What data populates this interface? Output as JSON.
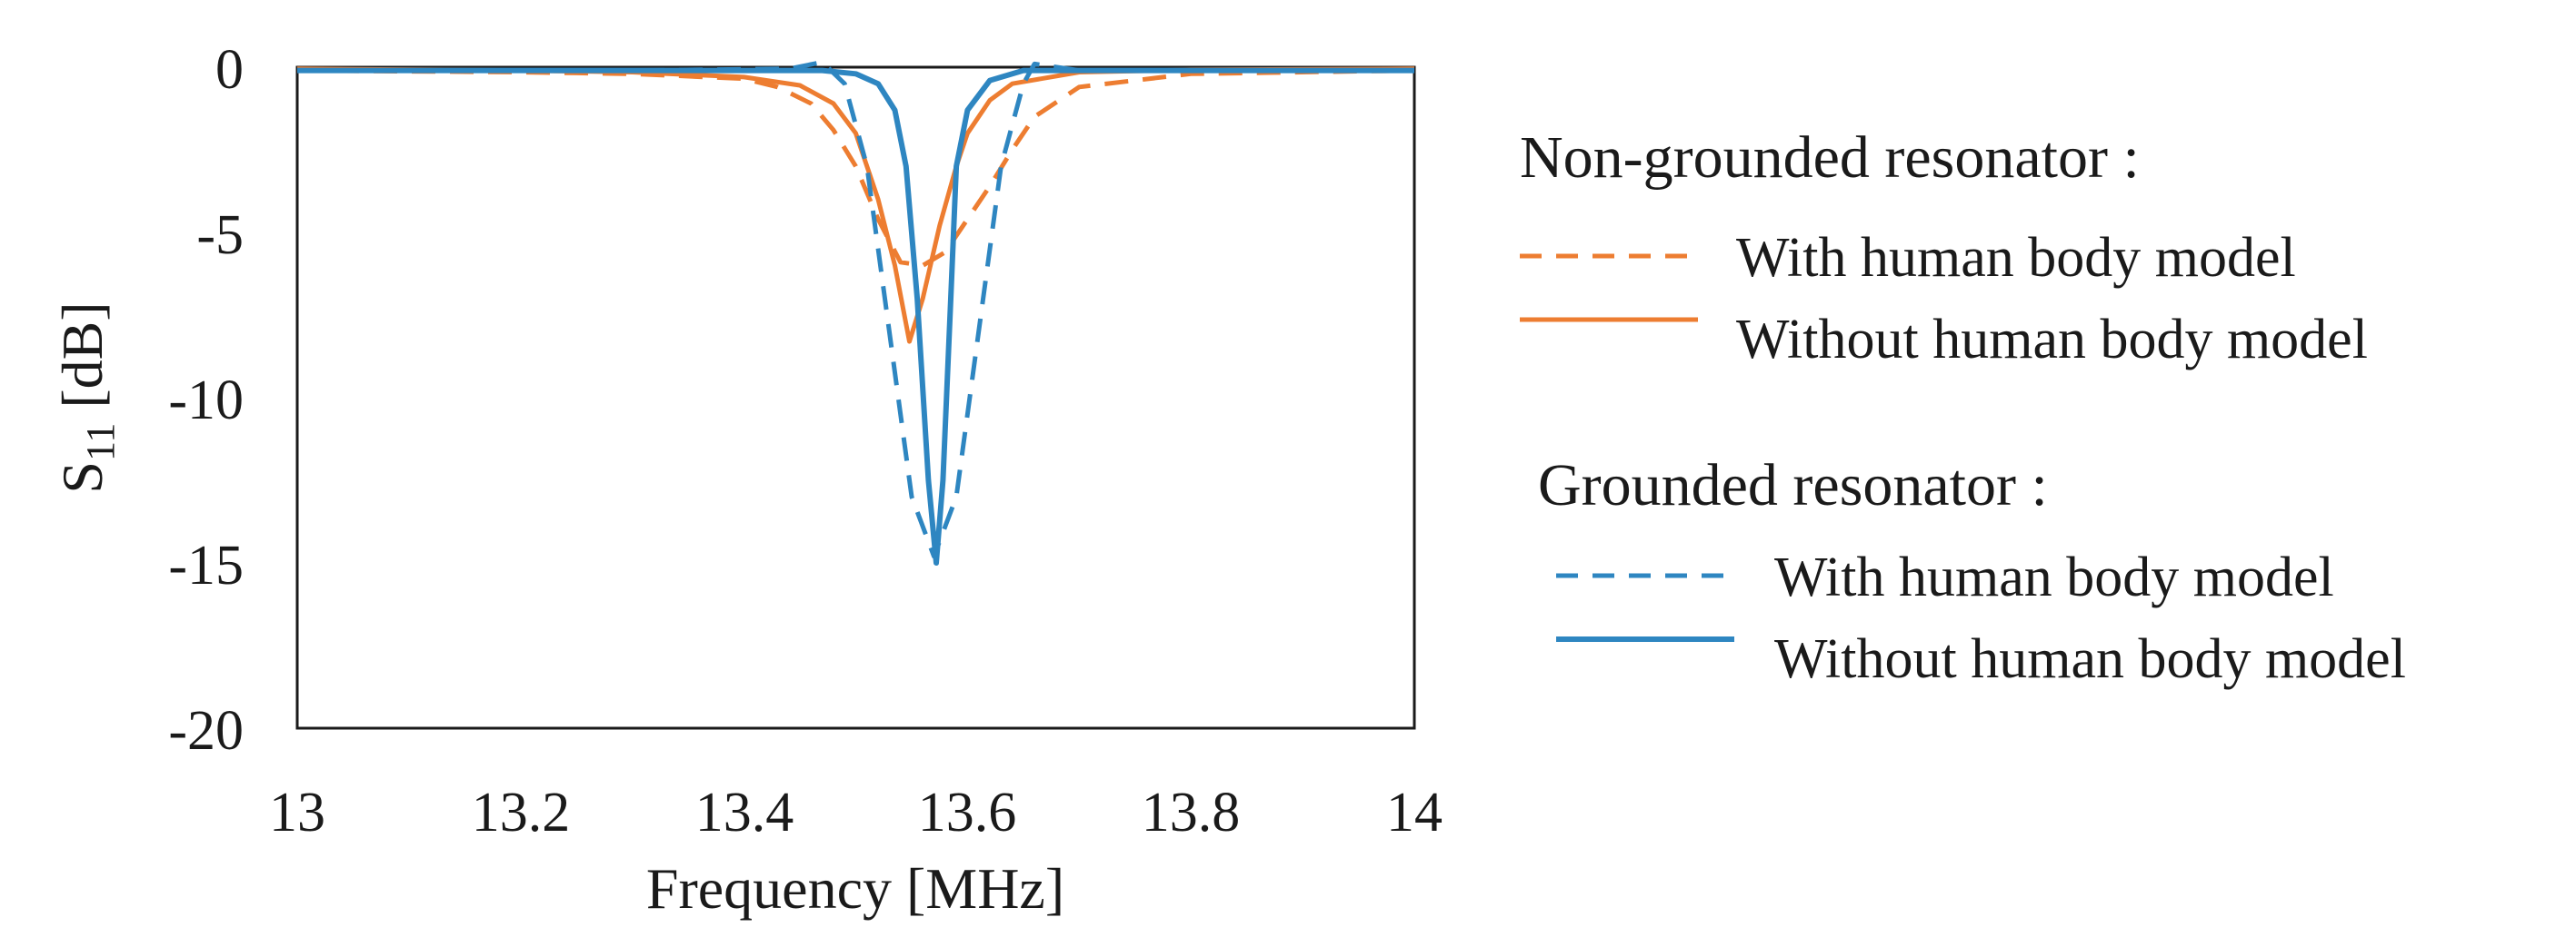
{
  "chart_data": {
    "type": "line",
    "title": "",
    "xlabel": "Frequency [MHz]",
    "ylabel": {
      "base": "S",
      "subscript": "11",
      "unit": " [dB]"
    },
    "xlim": [
      13,
      14
    ],
    "ylim": [
      -20,
      0
    ],
    "x_ticks": [
      13,
      13.2,
      13.4,
      13.6,
      13.8,
      14
    ],
    "x_tick_labels": [
      "13",
      "13.2",
      "13.4",
      "13.6",
      "13.8",
      "14"
    ],
    "y_ticks": [
      0,
      -5,
      -10,
      -15,
      -20
    ],
    "y_tick_labels": [
      "0",
      "-5",
      "-10",
      "-15",
      "-20"
    ],
    "grid": false,
    "legend": {
      "placement": "right",
      "groups": [
        {
          "heading": "Non-grounded resonator :",
          "entries": [
            {
              "series": "ng_with",
              "label": "With human body model"
            },
            {
              "series": "ng_without",
              "label": "Without human body model"
            }
          ]
        },
        {
          "heading": "Grounded resonator :",
          "entries": [
            {
              "series": "g_with",
              "label": "With human body model"
            },
            {
              "series": "g_without",
              "label": "Without human body model"
            }
          ]
        }
      ]
    },
    "series": [
      {
        "id": "ng_with",
        "name": "Non-grounded resonator – With human body model",
        "color": "#ed7d31",
        "dash": "dashed",
        "x": [
          13.0,
          13.2,
          13.3,
          13.4,
          13.43,
          13.46,
          13.48,
          13.5,
          13.52,
          13.54,
          13.56,
          13.58,
          13.6,
          13.62,
          13.64,
          13.66,
          13.7,
          13.8,
          14.0
        ],
        "y": [
          -0.1,
          -0.15,
          -0.2,
          -0.35,
          -0.6,
          -1.1,
          -1.9,
          -3.0,
          -4.6,
          -5.9,
          -6.0,
          -5.6,
          -4.6,
          -3.6,
          -2.5,
          -1.5,
          -0.6,
          -0.2,
          -0.1
        ]
      },
      {
        "id": "ng_without",
        "name": "Non-grounded resonator – Without human body model",
        "color": "#ed7d31",
        "dash": "solid",
        "x": [
          13.0,
          13.2,
          13.3,
          13.4,
          13.45,
          13.48,
          13.5,
          13.52,
          13.535,
          13.548,
          13.56,
          13.575,
          13.59,
          13.6,
          13.62,
          13.64,
          13.7,
          13.8,
          14.0
        ],
        "y": [
          -0.05,
          -0.1,
          -0.15,
          -0.3,
          -0.55,
          -1.1,
          -2.0,
          -4.0,
          -6.0,
          -8.3,
          -7.0,
          -4.8,
          -3.0,
          -2.0,
          -1.0,
          -0.5,
          -0.15,
          -0.08,
          -0.05
        ]
      },
      {
        "id": "g_with",
        "name": "Grounded resonator – With human body model",
        "color": "#2e86c1",
        "dash": "dashed",
        "x": [
          13.0,
          13.3,
          13.44,
          13.47,
          13.49,
          13.51,
          13.53,
          13.55,
          13.57,
          13.59,
          13.61,
          13.63,
          13.65,
          13.66,
          13.7,
          14.0
        ],
        "y": [
          -0.1,
          -0.1,
          -0.05,
          0.15,
          -0.5,
          -3.0,
          -8.0,
          -13.0,
          -14.8,
          -13.0,
          -8.0,
          -3.0,
          -0.5,
          0.1,
          -0.1,
          -0.1
        ]
      },
      {
        "id": "g_without",
        "name": "Grounded resonator – Without human body model",
        "color": "#2e86c1",
        "dash": "solid",
        "x": [
          13.0,
          13.3,
          13.47,
          13.5,
          13.52,
          13.535,
          13.545,
          13.555,
          13.565,
          13.572,
          13.578,
          13.585,
          13.59,
          13.6,
          13.62,
          13.65,
          14.0
        ],
        "y": [
          -0.1,
          -0.1,
          -0.1,
          -0.2,
          -0.5,
          -1.3,
          -3.0,
          -7.0,
          -12.5,
          -15.0,
          -12.5,
          -7.0,
          -3.0,
          -1.3,
          -0.4,
          -0.1,
          -0.1
        ]
      }
    ]
  }
}
